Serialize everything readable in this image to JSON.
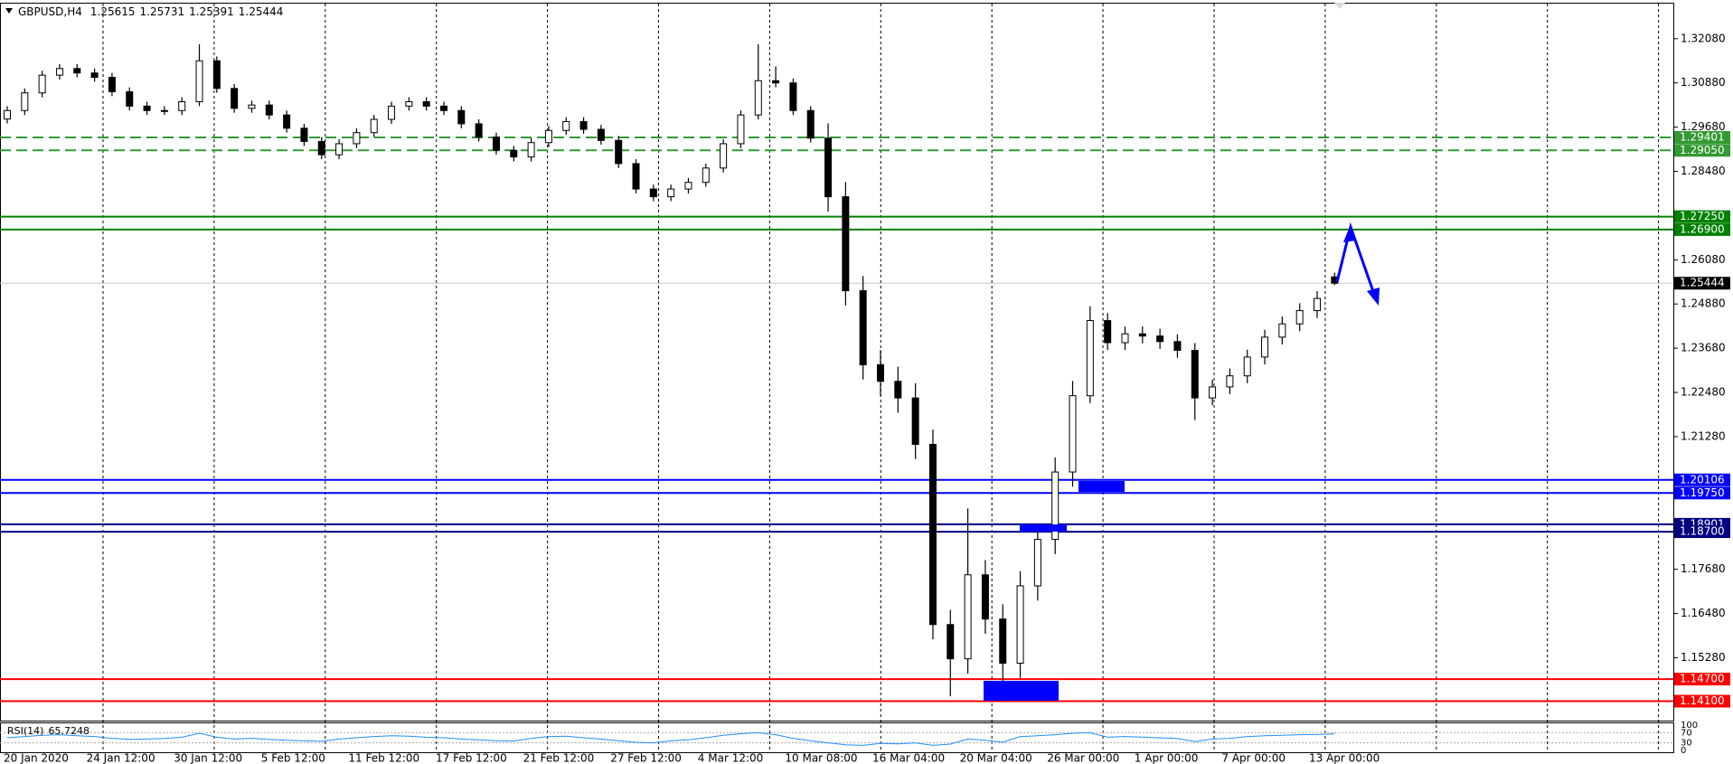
{
  "chart_data": {
    "type": "candlestick",
    "title": "GBPUSD,H4",
    "categories": [
      "20 Jan 2020",
      null,
      null,
      null,
      null,
      "24 Jan 12:00",
      null,
      null,
      null,
      null,
      "30 Jan 12:00",
      null,
      null,
      null,
      null,
      "5 Feb 12:00",
      null,
      null,
      null,
      null,
      "11 Feb 12:00",
      null,
      null,
      null,
      null,
      "17 Feb 12:00",
      null,
      null,
      null,
      null,
      "21 Feb 12:00",
      null,
      null,
      null,
      null,
      "27 Feb 12:00",
      null,
      null,
      null,
      null,
      "4 Mar 12:00",
      null,
      null,
      null,
      null,
      "10 Mar 08:00",
      null,
      null,
      null,
      null,
      "16 Mar 04:00",
      null,
      null,
      null,
      null,
      "20 Mar 04:00",
      null,
      null,
      null,
      null,
      "26 Mar 00:00",
      null,
      null,
      null,
      null,
      "1 Apr 00:00",
      null,
      null,
      null,
      null,
      "7 Apr 00:00",
      null,
      null,
      null,
      null,
      "13 Apr 00:00",
      null
    ],
    "open": [
      1.299,
      1.3013,
      1.3061,
      1.3109,
      1.3127,
      1.3115,
      1.3103,
      1.3064,
      1.3025,
      1.3013,
      1.3013,
      1.3037,
      1.3148,
      1.3073,
      1.3019,
      1.3028,
      1.3001,
      1.2965,
      1.2929,
      1.2893,
      1.2923,
      1.2953,
      1.2989,
      1.3025,
      1.3037,
      1.3025,
      1.3013,
      1.2977,
      1.2941,
      1.2905,
      1.2887,
      1.2926,
      1.2959,
      1.2983,
      1.2962,
      1.2932,
      1.2869,
      1.28,
      1.2779,
      1.28,
      1.2818,
      1.2857,
      1.2923,
      1.3001,
      1.3094,
      1.3088,
      1.3013,
      1.2938,
      1.2779,
      1.2524,
      1.2323,
      1.2278,
      1.2233,
      1.2107,
      1.1618,
      1.1525,
      1.1753,
      1.1633,
      1.1513,
      1.1723,
      1.1849,
      1.2032,
      1.2239,
      1.2443,
      1.2383,
      1.2407,
      1.2401,
      1.2386,
      1.2362,
      1.2233,
      1.2263,
      1.2293,
      1.2344,
      1.2398,
      1.2434,
      1.247,
      1.25615
    ],
    "high": [
      1.3025,
      1.3073,
      1.3121,
      1.3139,
      1.3139,
      1.3127,
      1.3115,
      1.3076,
      1.3037,
      1.3025,
      1.3049,
      1.3193,
      1.316,
      1.3085,
      1.304,
      1.304,
      1.3013,
      1.2977,
      1.2941,
      1.2935,
      1.2965,
      1.3001,
      1.3037,
      1.3049,
      1.3049,
      1.3037,
      1.3025,
      1.2989,
      1.2953,
      1.2917,
      1.2938,
      1.2971,
      1.2995,
      1.2995,
      1.2974,
      1.2944,
      1.2881,
      1.2812,
      1.2812,
      1.283,
      1.2869,
      1.2935,
      1.3013,
      1.3193,
      1.3133,
      1.31,
      1.3025,
      1.2978,
      1.2819,
      1.2564,
      1.2363,
      1.2318,
      1.2273,
      1.2147,
      1.1658,
      1.1933,
      1.1793,
      1.1673,
      1.1763,
      1.1889,
      1.2072,
      1.2279,
      1.2482,
      1.2463,
      1.2427,
      1.2427,
      1.2421,
      1.2406,
      1.2382,
      1.2283,
      1.2313,
      1.2364,
      1.2418,
      1.2454,
      1.249,
      1.2523,
      1.25731
    ],
    "low": [
      1.2978,
      1.3001,
      1.3049,
      1.3097,
      1.3103,
      1.3091,
      1.3052,
      1.3013,
      1.3001,
      1.3001,
      1.3001,
      1.3025,
      1.3061,
      1.3007,
      1.3007,
      1.2989,
      1.2953,
      1.2917,
      1.2881,
      1.2881,
      1.2911,
      1.2941,
      1.2977,
      1.3013,
      1.3013,
      1.3001,
      1.2965,
      1.2929,
      1.2893,
      1.2875,
      1.2875,
      1.2914,
      1.2947,
      1.295,
      1.292,
      1.2857,
      1.2788,
      1.2767,
      1.2767,
      1.2788,
      1.2806,
      1.2845,
      1.2911,
      1.2989,
      1.3076,
      1.3001,
      1.2926,
      1.2739,
      1.2484,
      1.2283,
      1.2238,
      1.2193,
      1.2067,
      1.1578,
      1.1423,
      1.1485,
      1.1593,
      1.1447,
      1.1473,
      1.1683,
      1.1809,
      1.1992,
      1.2219,
      1.2363,
      1.2363,
      1.2381,
      1.2366,
      1.2342,
      1.2173,
      1.2213,
      1.2243,
      1.2273,
      1.2324,
      1.2378,
      1.2414,
      1.245,
      1.25391
    ],
    "close": [
      1.3013,
      1.3061,
      1.3109,
      1.3127,
      1.3115,
      1.3103,
      1.3064,
      1.3025,
      1.3013,
      1.3013,
      1.3037,
      1.3148,
      1.3073,
      1.3019,
      1.3028,
      1.3001,
      1.2965,
      1.2929,
      1.2893,
      1.2923,
      1.2953,
      1.2989,
      1.3025,
      1.3037,
      1.3025,
      1.3013,
      1.2977,
      1.2941,
      1.2905,
      1.2887,
      1.2926,
      1.2959,
      1.2983,
      1.2962,
      1.2932,
      1.2869,
      1.28,
      1.2779,
      1.28,
      1.2818,
      1.2857,
      1.2923,
      1.3001,
      1.3094,
      1.3088,
      1.3013,
      1.2938,
      1.2779,
      1.2524,
      1.2323,
      1.2278,
      1.2233,
      1.2107,
      1.1618,
      1.1525,
      1.1753,
      1.1633,
      1.1513,
      1.1723,
      1.1849,
      1.2032,
      1.2239,
      1.2443,
      1.2383,
      1.2407,
      1.2401,
      1.2386,
      1.2362,
      1.2233,
      1.2263,
      1.2293,
      1.2344,
      1.2398,
      1.2434,
      1.247,
      1.2503,
      1.25444
    ],
    "up_color": "#ffffff",
    "down_color": "#000000",
    "wick_color": "#000000",
    "ylim": [
      1.13573,
      1.33032
    ],
    "yticks": [
      {
        "value": 1.3208,
        "label": "1.32080"
      },
      {
        "value": 1.3088,
        "label": "1.30880"
      },
      {
        "value": 1.2968,
        "label": "1.29680"
      },
      {
        "value": 1.2848,
        "label": "1.28480"
      },
      {
        "value": 1.2608,
        "label": "1.26080"
      },
      {
        "value": 1.2488,
        "label": "1.24880"
      },
      {
        "value": 1.2368,
        "label": "1.23680"
      },
      {
        "value": 1.2248,
        "label": "1.22480"
      },
      {
        "value": 1.2128,
        "label": "1.21280"
      },
      {
        "value": 1.1768,
        "label": "1.17680"
      },
      {
        "value": 1.1648,
        "label": "1.16480"
      },
      {
        "value": 1.1528,
        "label": "1.15280"
      }
    ],
    "grid": true,
    "current_price_color": "#000000",
    "levels": [
      {
        "value": 1.29401,
        "color": "#339933",
        "style": "dashed"
      },
      {
        "value": 1.2905,
        "label": "1.29050",
        "color": "#339933",
        "style": "dashed"
      },
      {
        "value": 1.2725,
        "label": "1.27250",
        "color": "#008000",
        "style": "solid"
      },
      {
        "value": 1.269,
        "label": "1.26900",
        "color": "#008000",
        "style": "solid"
      },
      {
        "value": 1.20106,
        "color": "#0000ff",
        "style": "solid"
      },
      {
        "value": 1.1975,
        "label": "1.19750",
        "color": "#0000ff",
        "style": "solid"
      },
      {
        "value": 1.18901,
        "color": "#000080",
        "style": "solid"
      },
      {
        "value": 1.187,
        "label": "1.18700",
        "color": "#000080",
        "style": "solid"
      },
      {
        "value": 1.147,
        "label": "1.14700",
        "color": "#ff0000",
        "style": "solid"
      },
      {
        "value": 1.141,
        "label": "1.14100",
        "color": "#ff0000",
        "style": "solid"
      }
    ],
    "indicator": {
      "name": "RSI(14)",
      "color": "#1e90ff",
      "ylim": [
        0,
        100
      ],
      "yticks": [
        100,
        70,
        30,
        0
      ],
      "values": [
        50,
        55,
        60,
        62,
        58,
        55,
        48,
        44,
        45,
        47,
        52,
        68,
        52,
        45,
        48,
        44,
        40,
        38,
        36,
        45,
        50,
        55,
        58,
        56,
        52,
        50,
        45,
        42,
        38,
        37,
        48,
        55,
        56,
        50,
        45,
        38,
        32,
        30,
        38,
        42,
        50,
        60,
        66,
        70,
        62,
        48,
        38,
        30,
        22,
        20,
        28,
        26,
        30,
        20,
        25,
        45,
        40,
        32,
        55,
        58,
        62,
        68,
        70,
        52,
        55,
        53,
        50,
        47,
        35,
        45,
        48,
        55,
        58,
        60,
        62,
        63,
        65.7248
      ]
    }
  }
}
